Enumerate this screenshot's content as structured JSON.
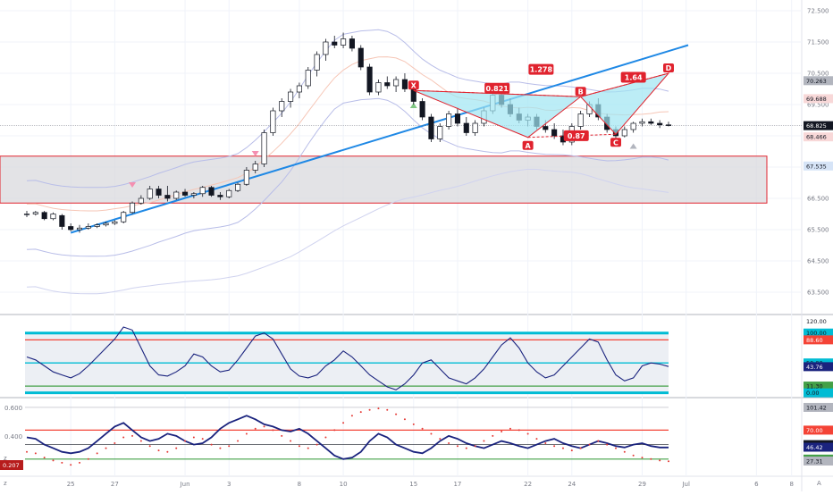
{
  "chart_data": [
    {
      "type": "candlestick",
      "price_axis": {
        "ticks": [
          "72.500",
          "71.500",
          "70.500",
          "69.500",
          "68.500",
          "67.500",
          "66.500",
          "65.500",
          "64.500",
          "63.500"
        ],
        "tick_values": [
          72.5,
          71.5,
          70.5,
          69.5,
          68.5,
          67.5,
          66.5,
          65.5,
          64.5,
          63.5
        ],
        "ylim": [
          62.9,
          72.7
        ]
      },
      "x_axis": {
        "labels": [
          "25",
          "27",
          "Jun",
          "3",
          "8",
          "10",
          "15",
          "17",
          "22",
          "24",
          "29",
          "Jul",
          "6",
          "8"
        ],
        "label_index": [
          5,
          10,
          18,
          23,
          31,
          36,
          44,
          49,
          57,
          62,
          70,
          75,
          83,
          87
        ]
      },
      "candles": [
        [
          66.0,
          66.1,
          65.9,
          66.0
        ],
        [
          66.0,
          66.1,
          65.95,
          66.05
        ],
        [
          66.05,
          66.1,
          65.8,
          65.85
        ],
        [
          65.85,
          66.05,
          65.8,
          66.0
        ],
        [
          65.95,
          66.0,
          65.5,
          65.6
        ],
        [
          65.6,
          65.7,
          65.45,
          65.5
        ],
        [
          65.5,
          65.65,
          65.4,
          65.55
        ],
        [
          65.55,
          65.7,
          65.5,
          65.6
        ],
        [
          65.6,
          65.7,
          65.55,
          65.65
        ],
        [
          65.65,
          65.75,
          65.6,
          65.7
        ],
        [
          65.7,
          65.8,
          65.65,
          65.75
        ],
        [
          65.75,
          66.1,
          65.7,
          66.05
        ],
        [
          66.05,
          66.4,
          66.0,
          66.35
        ],
        [
          66.35,
          66.6,
          66.3,
          66.5
        ],
        [
          66.5,
          66.9,
          66.45,
          66.8
        ],
        [
          66.8,
          66.9,
          66.5,
          66.6
        ],
        [
          66.6,
          66.9,
          66.4,
          66.5
        ],
        [
          66.5,
          66.75,
          66.45,
          66.7
        ],
        [
          66.7,
          66.8,
          66.55,
          66.6
        ],
        [
          66.6,
          66.7,
          66.5,
          66.65
        ],
        [
          66.65,
          66.9,
          66.55,
          66.85
        ],
        [
          66.85,
          66.9,
          66.55,
          66.6
        ],
        [
          66.6,
          66.7,
          66.45,
          66.55
        ],
        [
          66.55,
          66.8,
          66.5,
          66.75
        ],
        [
          66.75,
          67.0,
          66.7,
          66.95
        ],
        [
          66.95,
          67.5,
          66.9,
          67.4
        ],
        [
          67.4,
          67.7,
          67.3,
          67.6
        ],
        [
          67.6,
          68.7,
          67.5,
          68.6
        ],
        [
          68.6,
          69.4,
          68.5,
          69.3
        ],
        [
          69.3,
          69.7,
          69.1,
          69.6
        ],
        [
          69.6,
          70.0,
          69.4,
          69.9
        ],
        [
          69.9,
          70.2,
          69.7,
          70.1
        ],
        [
          70.1,
          70.7,
          70.0,
          70.6
        ],
        [
          70.6,
          71.2,
          70.4,
          71.1
        ],
        [
          71.1,
          71.6,
          70.9,
          71.5
        ],
        [
          71.5,
          71.7,
          71.3,
          71.4
        ],
        [
          71.4,
          71.8,
          71.3,
          71.6
        ],
        [
          71.6,
          71.7,
          71.2,
          71.3
        ],
        [
          71.3,
          71.4,
          70.6,
          70.7
        ],
        [
          70.7,
          70.8,
          69.8,
          69.9
        ],
        [
          69.9,
          70.3,
          69.8,
          70.2
        ],
        [
          70.2,
          70.4,
          70.0,
          70.1
        ],
        [
          70.1,
          70.4,
          69.9,
          70.3
        ],
        [
          70.3,
          70.5,
          69.9,
          70.0
        ],
        [
          70.0,
          70.2,
          69.5,
          69.6
        ],
        [
          69.6,
          69.7,
          69.0,
          69.1
        ],
        [
          69.1,
          69.2,
          68.3,
          68.4
        ],
        [
          68.4,
          68.9,
          68.3,
          68.8
        ],
        [
          68.8,
          69.3,
          68.7,
          69.2
        ],
        [
          69.2,
          69.4,
          68.8,
          68.9
        ],
        [
          68.9,
          69.1,
          68.5,
          68.6
        ],
        [
          68.6,
          69.0,
          68.5,
          68.9
        ],
        [
          68.9,
          69.4,
          68.8,
          69.3
        ],
        [
          69.3,
          69.9,
          69.2,
          69.8
        ],
        [
          69.8,
          70.0,
          69.4,
          69.5
        ],
        [
          69.5,
          69.7,
          69.1,
          69.2
        ],
        [
          69.2,
          69.4,
          68.9,
          69.0
        ],
        [
          69.0,
          69.2,
          68.8,
          69.1
        ],
        [
          69.1,
          69.2,
          68.7,
          68.8
        ],
        [
          68.8,
          69.0,
          68.6,
          68.7
        ],
        [
          68.7,
          68.9,
          68.4,
          68.5
        ],
        [
          68.5,
          68.7,
          68.2,
          68.3
        ],
        [
          68.3,
          68.9,
          68.2,
          68.8
        ],
        [
          68.8,
          69.3,
          68.7,
          69.2
        ],
        [
          69.2,
          69.6,
          69.1,
          69.5
        ],
        [
          69.5,
          69.7,
          69.0,
          69.1
        ],
        [
          69.1,
          69.2,
          68.6,
          68.7
        ],
        [
          68.7,
          68.8,
          68.4,
          68.5
        ],
        [
          68.5,
          68.8,
          68.45,
          68.7
        ],
        [
          68.7,
          68.95,
          68.6,
          68.9
        ],
        [
          68.9,
          69.05,
          68.8,
          68.95
        ],
        [
          68.95,
          69.05,
          68.85,
          68.9
        ],
        [
          68.9,
          69.0,
          68.75,
          68.85
        ],
        [
          68.85,
          68.95,
          68.8,
          68.83
        ]
      ],
      "price_tags": [
        {
          "label": "70.263",
          "value": 70.263,
          "color": "#b2b5be"
        },
        {
          "label": "69.688",
          "value": 69.688,
          "color": "#f8d8d8"
        },
        {
          "label": "68.825",
          "value": 68.825,
          "color": "#131722"
        },
        {
          "label": "68.466",
          "value": 68.466,
          "color": "#f8d8d8"
        },
        {
          "label": "67.535",
          "value": 67.535,
          "color": "#d6e4f7"
        }
      ],
      "harmonic_pattern": {
        "points": [
          "X",
          "A",
          "B",
          "C",
          "D"
        ],
        "ratios": [
          "0.821",
          "1.278",
          "0.87",
          "1.64"
        ],
        "fill": "#9fe6f2",
        "stroke": "#e0232e"
      },
      "trendline_color": "#1e88e5",
      "zone_fill": "#d9d9de",
      "zone_stroke": "#e0232e"
    },
    {
      "type": "line",
      "name": "oscillator-1",
      "levels": [
        "120.00",
        "100.00",
        "88.60",
        "50.00",
        "43.76",
        "11.30",
        "0.00"
      ],
      "level_colors": {
        "100.00": "#00bcd4",
        "88.60": "#f44336",
        "50.00": "#00bcd4",
        "43.76": "#1a237e",
        "11.30": "#43a047",
        "0.00": "#00bcd4"
      },
      "ylim": [
        -5,
        125
      ],
      "values": [
        60,
        55,
        45,
        35,
        30,
        25,
        32,
        45,
        60,
        75,
        90,
        110,
        105,
        75,
        45,
        30,
        28,
        35,
        45,
        65,
        60,
        45,
        35,
        38,
        55,
        75,
        95,
        100,
        90,
        65,
        40,
        28,
        25,
        30,
        45,
        55,
        70,
        60,
        45,
        30,
        20,
        10,
        5,
        15,
        30,
        50,
        55,
        40,
        25,
        20,
        15,
        25,
        40,
        60,
        80,
        92,
        75,
        50,
        35,
        25,
        30,
        45,
        60,
        75,
        90,
        85,
        55,
        30,
        20,
        25,
        45,
        50,
        48,
        44
      ]
    },
    {
      "type": "line",
      "name": "oscillator-2",
      "axis_ticks": [
        "0.600",
        "0.400"
      ],
      "levels": [
        "101.42",
        "70.00",
        "50.00",
        "46.42",
        "30.00",
        "27.31"
      ],
      "left_tag": "0.207",
      "ylim": [
        10,
        110
      ],
      "values": [
        60,
        58,
        50,
        45,
        40,
        38,
        40,
        45,
        55,
        65,
        75,
        80,
        70,
        60,
        55,
        58,
        65,
        62,
        55,
        50,
        52,
        60,
        72,
        80,
        85,
        90,
        85,
        78,
        75,
        70,
        68,
        72,
        65,
        55,
        45,
        35,
        30,
        32,
        40,
        55,
        65,
        60,
        50,
        45,
        40,
        38,
        45,
        55,
        62,
        58,
        52,
        48,
        45,
        50,
        55,
        52,
        48,
        45,
        50,
        55,
        58,
        52,
        48,
        45,
        50,
        55,
        52,
        48,
        46,
        50,
        52,
        48,
        46,
        46
      ],
      "dotted_values": [
        40,
        38,
        32,
        28,
        25,
        22,
        25,
        30,
        38,
        45,
        52,
        60,
        62,
        55,
        48,
        42,
        40,
        45,
        55,
        60,
        58,
        50,
        45,
        48,
        55,
        65,
        72,
        75,
        70,
        62,
        55,
        48,
        45,
        50,
        60,
        70,
        80,
        90,
        95,
        98,
        100,
        98,
        92,
        85,
        78,
        72,
        65,
        58,
        52,
        48,
        45,
        48,
        55,
        62,
        68,
        72,
        70,
        65,
        58,
        52,
        48,
        45,
        42,
        45,
        50,
        55,
        50,
        45,
        40,
        35,
        32,
        30,
        28,
        27
      ]
    }
  ]
}
